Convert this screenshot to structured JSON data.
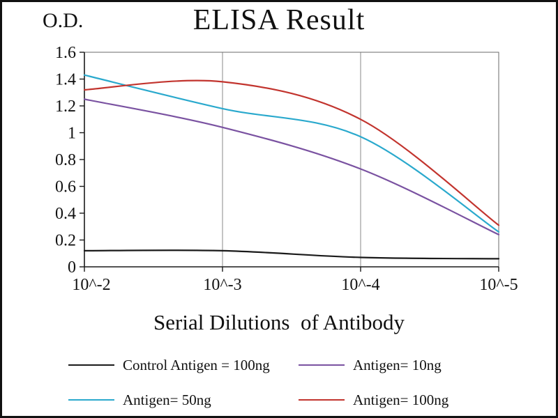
{
  "chart_data": {
    "type": "line",
    "title": "ELISA Result",
    "ylabel": "O.D.",
    "xlabel": "Serial Dilutions  of Antibody",
    "categories": [
      "10^-2",
      "10^-3",
      "10^-4",
      "10^-5"
    ],
    "ylim": [
      0,
      1.6
    ],
    "yticks": [
      0,
      0.2,
      0.4,
      0.6,
      0.8,
      1,
      1.2,
      1.4,
      1.6
    ],
    "ytick_labels": [
      "0",
      "0.2",
      "0.4",
      "0.6",
      "0.8",
      "1",
      "1.2",
      "1.4",
      "1.6"
    ],
    "grid": "vertical-only",
    "legend_position": "bottom",
    "line_style": "smooth",
    "colors": {
      "axis": "#1a1a1a",
      "plot_border": "#6a6a6a",
      "gridline": "#8a8a8a"
    },
    "series": [
      {
        "name": "Control Antigen = 100ng",
        "color": "#1a1a1a",
        "values": [
          0.12,
          0.12,
          0.07,
          0.06
        ]
      },
      {
        "name": "Antigen= 10ng",
        "color": "#7a52a1",
        "values": [
          1.25,
          1.04,
          0.73,
          0.24
        ]
      },
      {
        "name": "Antigen= 50ng",
        "color": "#2aa9cd",
        "values": [
          1.43,
          1.18,
          0.97,
          0.26
        ]
      },
      {
        "name": "Antigen= 100ng",
        "color": "#c2342e",
        "values": [
          1.32,
          1.38,
          1.1,
          0.31
        ]
      }
    ]
  }
}
